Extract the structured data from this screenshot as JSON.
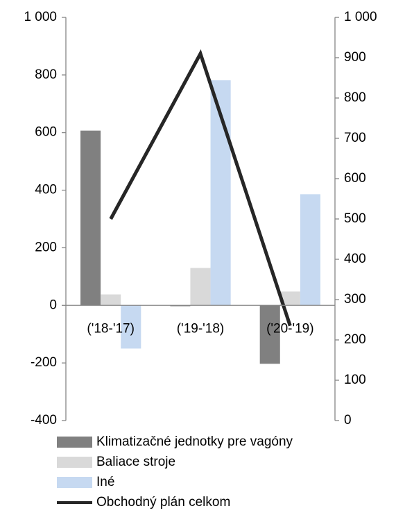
{
  "chart_data": {
    "type": "bar",
    "categories": [
      "('18-'17)",
      "('19-'18)",
      "('20-'19)"
    ],
    "series": [
      {
        "name": "Klimatizačné jednotky pre vagóny",
        "color": "#808080",
        "values": [
          607,
          -3,
          -203
        ]
      },
      {
        "name": "Baliace stroje",
        "color": "#d9d9d9",
        "values": [
          38,
          130,
          48
        ]
      },
      {
        "name": "Iné",
        "color": "#c6d9f1",
        "values": [
          -150,
          782,
          386
        ]
      },
      {
        "name": "Obchodný plán celkom",
        "color": "#262626",
        "type": "line",
        "axis": "y2",
        "values": [
          500,
          910,
          235
        ]
      }
    ],
    "ylim": [
      -400,
      1000
    ],
    "yticks": [
      -400,
      -200,
      0,
      200,
      400,
      600,
      800,
      {
        "value": 1000,
        "label": "1 000"
      }
    ],
    "y2lim": [
      0,
      1000
    ],
    "y2ticks": [
      0,
      100,
      200,
      300,
      400,
      500,
      600,
      700,
      800,
      900,
      {
        "value": 1000,
        "label": "1 000"
      }
    ],
    "grid": false,
    "legend": "bottom"
  }
}
